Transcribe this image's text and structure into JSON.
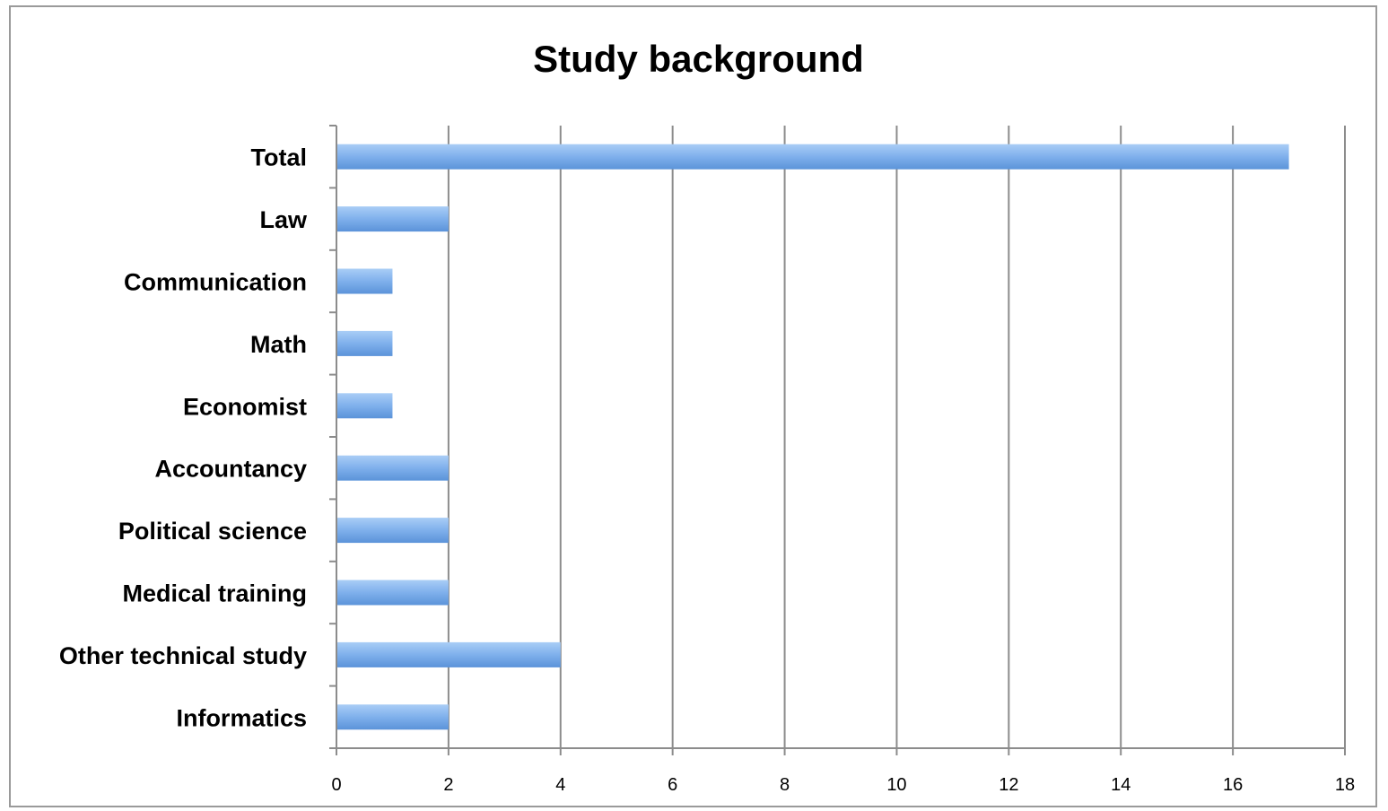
{
  "chart_data": {
    "type": "bar",
    "orientation": "horizontal",
    "title": "Study background",
    "xlabel": "",
    "ylabel": "",
    "categories": [
      "Total",
      "Law",
      "Communication",
      "Math",
      "Economist",
      "Accountancy",
      "Political science",
      "Medical training",
      "Other technical study",
      "Informatics"
    ],
    "values": [
      17,
      2,
      1,
      1,
      1,
      2,
      2,
      2,
      4,
      2
    ],
    "xlim": [
      0,
      18
    ],
    "x_ticks": [
      "0",
      "2",
      "4",
      "6",
      "8",
      "10",
      "12",
      "14",
      "16",
      "18"
    ],
    "grid": true,
    "legend": "none",
    "colors": {
      "bar_top": "#a9cdf6",
      "bar_bottom": "#5b93d9",
      "gridline": "#8c8c8c",
      "axis": "#8c8c8c"
    }
  }
}
